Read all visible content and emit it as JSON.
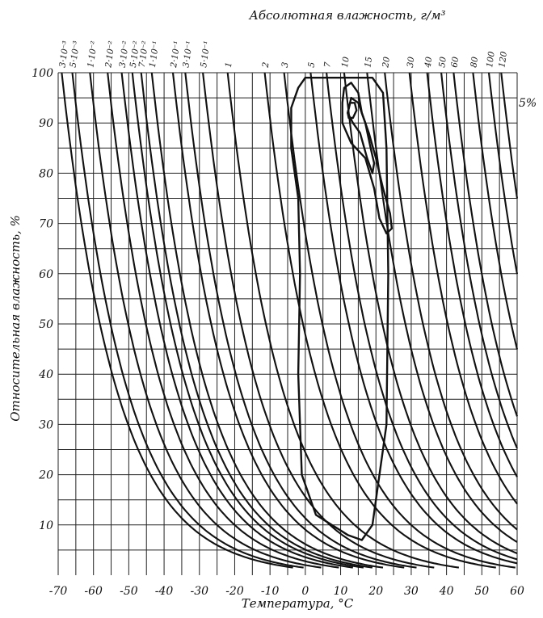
{
  "chart_data": {
    "type": "line",
    "title": "",
    "xlabel": "Температура, °С",
    "ylabel": "Относительная влажность, %",
    "top_axis_label": "Абсолютная влажность, г/м³",
    "xlim": [
      -70,
      60
    ],
    "ylim": [
      0,
      100
    ],
    "x_ticks": [
      -70,
      -60,
      -50,
      -40,
      -30,
      -20,
      -10,
      0,
      10,
      20,
      30,
      40,
      50,
      60
    ],
    "x_tick_labels": [
      "-70",
      "-60",
      "-50",
      "-40",
      "-30",
      "-20",
      "-10",
      "0",
      "10",
      "20",
      "30",
      "40",
      "50",
      "60"
    ],
    "y_ticks": [
      10,
      20,
      30,
      40,
      50,
      60,
      70,
      80,
      90,
      100
    ],
    "y_tick_labels": [
      "10",
      "20",
      "30",
      "40",
      "50",
      "60",
      "70",
      "80",
      "90",
      "100"
    ],
    "grid": true,
    "absolute_humidity_isolines": [
      {
        "label": "3·10⁻³",
        "value": 0.003,
        "t_at_100pct": -69
      },
      {
        "label": "5·10⁻³",
        "value": 0.005,
        "t_at_100pct": -66
      },
      {
        "label": "1·10⁻²",
        "value": 0.01,
        "t_at_100pct": -61
      },
      {
        "label": "2·10⁻²",
        "value": 0.02,
        "t_at_100pct": -56
      },
      {
        "label": "3·10⁻²",
        "value": 0.03,
        "t_at_100pct": -52
      },
      {
        "label": "5·10⁻²",
        "value": 0.05,
        "t_at_100pct": -49
      },
      {
        "label": "7·10⁻²",
        "value": 0.07,
        "t_at_100pct": -46.5
      },
      {
        "label": "1·10⁻¹",
        "value": 0.1,
        "t_at_100pct": -43.5
      },
      {
        "label": "2·10⁻¹",
        "value": 0.2,
        "t_at_100pct": -37.5
      },
      {
        "label": "3·10⁻¹",
        "value": 0.3,
        "t_at_100pct": -34
      },
      {
        "label": "5·10⁻¹",
        "value": 0.5,
        "t_at_100pct": -29
      },
      {
        "label": "1",
        "value": 1,
        "t_at_100pct": -22
      },
      {
        "label": "2",
        "value": 2,
        "t_at_100pct": -11.5
      },
      {
        "label": "3",
        "value": 3,
        "t_at_100pct": -6
      },
      {
        "label": "5",
        "value": 5,
        "t_at_100pct": 1.5
      },
      {
        "label": "7",
        "value": 7,
        "t_at_100pct": 6
      },
      {
        "label": "10",
        "value": 10,
        "t_at_100pct": 11
      },
      {
        "label": "15",
        "value": 15,
        "t_at_100pct": 17.5
      },
      {
        "label": "20",
        "value": 20,
        "t_at_100pct": 22.5
      },
      {
        "label": "30",
        "value": 30,
        "t_at_100pct": 29.5
      },
      {
        "label": "40",
        "value": 40,
        "t_at_100pct": 34.5
      },
      {
        "label": "50",
        "value": 50,
        "t_at_100pct": 38.5
      },
      {
        "label": "60",
        "value": 60,
        "t_at_100pct": 42
      },
      {
        "label": "80",
        "value": 80,
        "t_at_100pct": 47.5
      },
      {
        "label": "100",
        "value": 100,
        "t_at_100pct": 52
      },
      {
        "label": "120",
        "value": 120,
        "t_at_100pct": 55.5
      }
    ],
    "contour_label": "5%",
    "contours": [
      {
        "name": "outer",
        "points": [
          [
            0,
            99
          ],
          [
            12,
            99
          ],
          [
            19,
            99
          ],
          [
            22,
            96
          ],
          [
            23,
            85
          ],
          [
            23.5,
            60
          ],
          [
            23,
            30
          ],
          [
            19,
            10
          ],
          [
            16,
            7
          ],
          [
            12,
            8
          ],
          [
            3,
            12
          ],
          [
            -1,
            20
          ],
          [
            -2,
            40
          ],
          [
            -1.5,
            60
          ],
          [
            -2,
            75
          ],
          [
            -4,
            85
          ],
          [
            -4,
            93
          ],
          [
            -2,
            97
          ]
        ]
      },
      {
        "name": "middle",
        "points": [
          [
            10.5,
            94
          ],
          [
            11,
            97
          ],
          [
            13,
            98
          ],
          [
            15,
            96
          ],
          [
            16,
            92
          ],
          [
            18,
            88
          ],
          [
            20,
            83
          ],
          [
            22,
            77
          ],
          [
            24,
            72
          ],
          [
            24.5,
            69
          ],
          [
            23,
            68
          ],
          [
            21,
            71
          ],
          [
            19.5,
            77
          ],
          [
            17,
            83
          ],
          [
            13,
            86
          ],
          [
            10.5,
            90
          ]
        ]
      },
      {
        "name": "inner",
        "points": [
          [
            12,
            92
          ],
          [
            13,
            95
          ],
          [
            15,
            94
          ],
          [
            17,
            90
          ],
          [
            18.5,
            85
          ],
          [
            19.5,
            82
          ],
          [
            19,
            80
          ],
          [
            17.5,
            83
          ],
          [
            15.5,
            88
          ],
          [
            13.5,
            90
          ]
        ]
      },
      {
        "name": "core",
        "points": [
          [
            12,
            92
          ],
          [
            12.7,
            94
          ],
          [
            14,
            94
          ],
          [
            14.5,
            92.5
          ],
          [
            13.5,
            91
          ],
          [
            12.3,
            91
          ]
        ]
      }
    ]
  }
}
